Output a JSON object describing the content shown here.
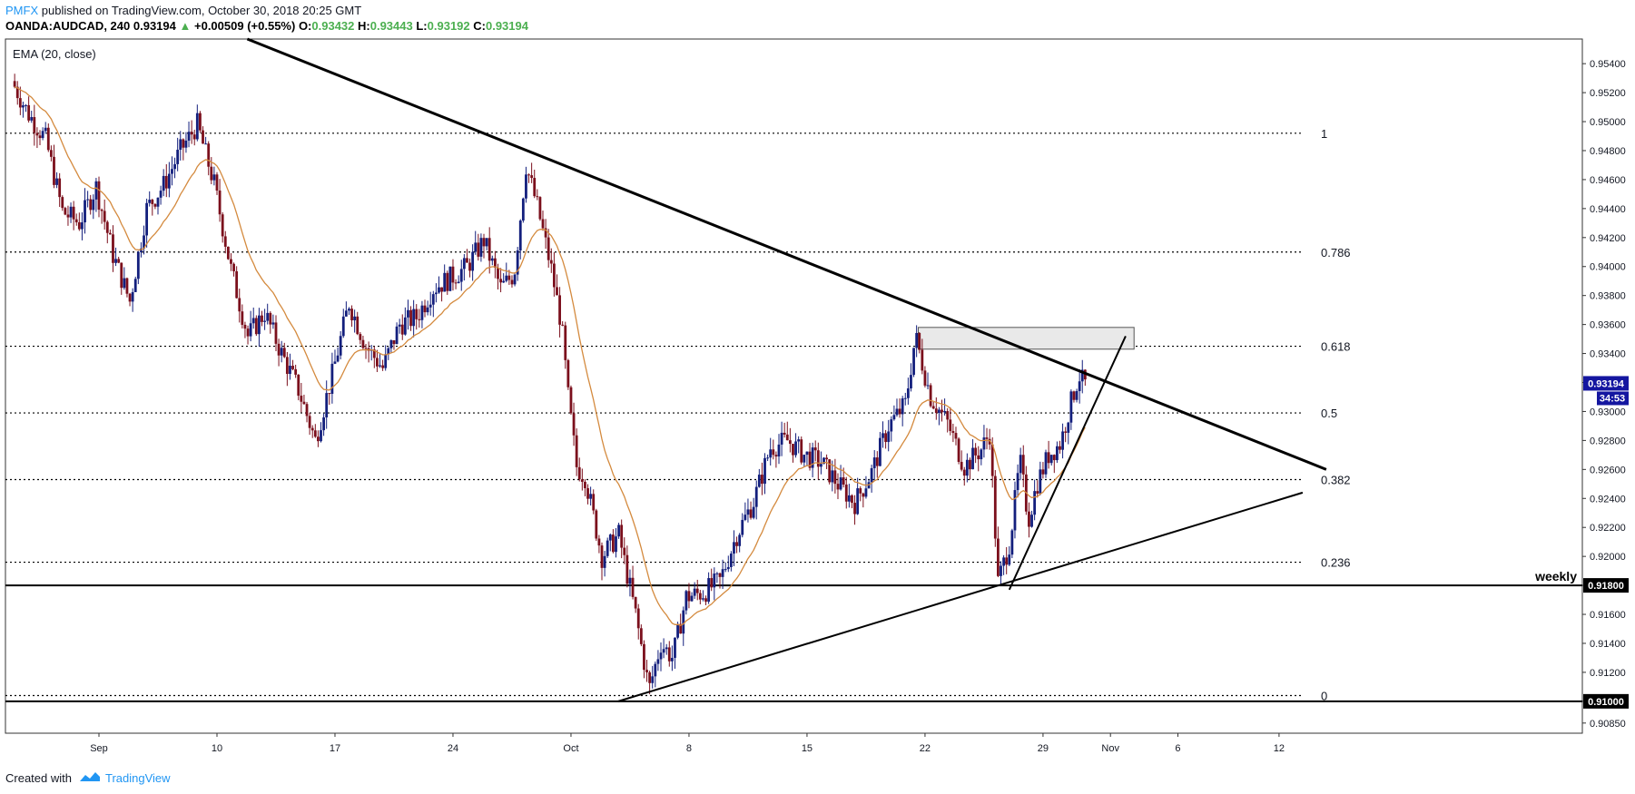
{
  "header": {
    "publisher": "PMFX",
    "published_text": "published on TradingView.com, October 30, 2018 20:25 GMT",
    "symbol": "OANDA:AUDCAD, 240",
    "last": "0.93194",
    "change": "+0.00509 (+0.55%)",
    "o_label": "O:",
    "o_value": "0.93432",
    "h_label": "H:",
    "h_value": "0.93443",
    "l_label": "L:",
    "l_value": "0.93192",
    "c_label": "C:",
    "c_value": "0.93194"
  },
  "indicator": {
    "label": "EMA (20, close)"
  },
  "footer": {
    "created_with": "Created with",
    "brand": "TradingView"
  },
  "colors": {
    "up": "#131f7d",
    "down": "#7b0f1c",
    "ema": "#d48a3e",
    "price_badge": "#1416a0",
    "line": "#000000",
    "zone_fill": "#e9e9e9",
    "zone_border": "#555555",
    "accent": "#2196f3"
  },
  "chart_data": {
    "type": "candlestick",
    "symbol": "OANDA:AUDCAD",
    "timeframe": "240",
    "y_range": [
      0.9078,
      0.9557
    ],
    "y_ticks": [
      "0.95400",
      "0.95200",
      "0.95000",
      "0.94800",
      "0.94600",
      "0.94400",
      "0.94200",
      "0.94000",
      "0.93800",
      "0.93600",
      "0.93400",
      "0.93200",
      "0.93000",
      "0.92800",
      "0.92600",
      "0.92400",
      "0.92200",
      "0.92000",
      "0.91800",
      "0.91600",
      "0.91400",
      "0.91200",
      "0.91000",
      "0.90850"
    ],
    "x_ticks": [
      {
        "label": "Sep",
        "day": 3
      },
      {
        "label": "10",
        "day": 10
      },
      {
        "label": "17",
        "day": 17
      },
      {
        "label": "24",
        "day": 24
      },
      {
        "label": "Oct",
        "day": 31
      },
      {
        "label": "8",
        "day": 38
      },
      {
        "label": "15",
        "day": 45
      },
      {
        "label": "22",
        "day": 52
      },
      {
        "label": "29",
        "day": 59
      },
      {
        "label": "Nov",
        "day": 63
      },
      {
        "label": "6",
        "day": 67
      },
      {
        "label": "12",
        "day": 73
      }
    ],
    "price_path": [
      [
        -2.0,
        0.9528
      ],
      [
        -1.0,
        0.9505
      ],
      [
        0.0,
        0.9488
      ],
      [
        1.0,
        0.9438
      ],
      [
        2.0,
        0.943
      ],
      [
        3.0,
        0.9455
      ],
      [
        4.0,
        0.9408
      ],
      [
        5.0,
        0.9376
      ],
      [
        6.0,
        0.944
      ],
      [
        7.0,
        0.9456
      ],
      [
        8.0,
        0.948
      ],
      [
        9.0,
        0.9498
      ],
      [
        10.0,
        0.9457
      ],
      [
        11.0,
        0.9398
      ],
      [
        12.0,
        0.9352
      ],
      [
        13.0,
        0.9368
      ],
      [
        14.0,
        0.934
      ],
      [
        15.0,
        0.9315
      ],
      [
        16.0,
        0.928
      ],
      [
        17.0,
        0.9325
      ],
      [
        18.0,
        0.9375
      ],
      [
        19.0,
        0.9345
      ],
      [
        20.0,
        0.933
      ],
      [
        21.0,
        0.936
      ],
      [
        22.0,
        0.9365
      ],
      [
        23.0,
        0.9385
      ],
      [
        24.0,
        0.9392
      ],
      [
        25.0,
        0.94
      ],
      [
        26.0,
        0.9418
      ],
      [
        27.0,
        0.9385
      ],
      [
        27.8,
        0.9395
      ],
      [
        28.5,
        0.947
      ],
      [
        29.2,
        0.944
      ],
      [
        30.0,
        0.9398
      ],
      [
        30.6,
        0.936
      ],
      [
        31.0,
        0.931
      ],
      [
        31.5,
        0.9262
      ],
      [
        32.0,
        0.9255
      ],
      [
        33.0,
        0.92
      ],
      [
        34.0,
        0.9215
      ],
      [
        35.0,
        0.916
      ],
      [
        35.8,
        0.9108
      ],
      [
        36.5,
        0.914
      ],
      [
        37.2,
        0.913
      ],
      [
        38.0,
        0.9172
      ],
      [
        39.0,
        0.9175
      ],
      [
        40.0,
        0.9183
      ],
      [
        41.0,
        0.9215
      ],
      [
        42.0,
        0.9238
      ],
      [
        43.0,
        0.9275
      ],
      [
        44.0,
        0.928
      ],
      [
        45.0,
        0.927
      ],
      [
        46.0,
        0.9265
      ],
      [
        47.0,
        0.925
      ],
      [
        48.0,
        0.9237
      ],
      [
        49.0,
        0.9258
      ],
      [
        50.0,
        0.929
      ],
      [
        51.0,
        0.9305
      ],
      [
        51.6,
        0.9352
      ],
      [
        52.5,
        0.931
      ],
      [
        53.5,
        0.9292
      ],
      [
        54.5,
        0.9262
      ],
      [
        55.5,
        0.9274
      ],
      [
        56.0,
        0.9285
      ],
      [
        56.5,
        0.9182
      ],
      [
        57.2,
        0.921
      ],
      [
        57.8,
        0.9266
      ],
      [
        58.3,
        0.9225
      ],
      [
        58.8,
        0.925
      ],
      [
        59.5,
        0.927
      ],
      [
        60.2,
        0.9278
      ],
      [
        60.8,
        0.9305
      ],
      [
        61.3,
        0.9325
      ],
      [
        61.6,
        0.9319
      ]
    ],
    "ema_label": "EMA (20, close)",
    "fibonacci": [
      {
        "level": "1",
        "price": 0.9492
      },
      {
        "level": "0.786",
        "price": 0.941
      },
      {
        "level": "0.618",
        "price": 0.9345
      },
      {
        "level": "0.5",
        "price": 0.9299
      },
      {
        "level": "0.382",
        "price": 0.9253
      },
      {
        "level": "0.236",
        "price": 0.9196
      },
      {
        "level": "0",
        "price": 0.9104
      }
    ],
    "horizontal_lines": [
      {
        "price": 0.918,
        "label": "weekly",
        "badge": "0.91800"
      },
      {
        "price": 0.91,
        "label": "",
        "badge": "0.91000"
      }
    ],
    "trendlines": [
      {
        "from": [
          11.8,
          0.9557
        ],
        "to": [
          75.8,
          0.926
        ],
        "width": "thick"
      },
      {
        "from": [
          33.8,
          0.91
        ],
        "to": [
          74.4,
          0.9244
        ],
        "width": "thin"
      },
      {
        "from": [
          57.0,
          0.9177
        ],
        "to": [
          63.9,
          0.9352
        ],
        "width": "thin"
      }
    ],
    "zone": {
      "from_day": 51.6,
      "to_day": 64.4,
      "top": 0.9358,
      "bottom": 0.9343
    },
    "current_price": {
      "value": "0.93194",
      "countdown": "34:53"
    }
  }
}
